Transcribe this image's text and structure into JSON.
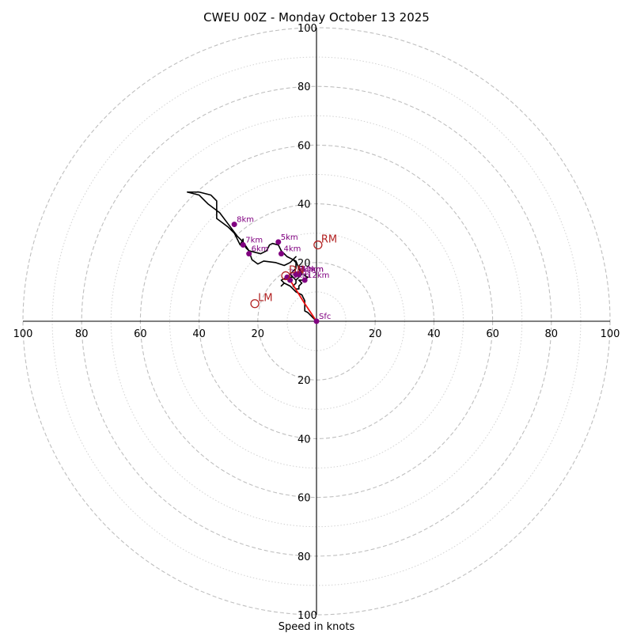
{
  "chart_data": {
    "type": "hodograph",
    "title": "CWEU 00Z - Monday October 13 2025",
    "xlabel": "Speed in knots",
    "ring_range": [
      0,
      100
    ],
    "major_rings": [
      20,
      40,
      60,
      80,
      100
    ],
    "minor_rings": [
      10,
      30,
      50,
      70,
      90
    ],
    "tick_labels": {
      "x_left": [
        "100",
        "80",
        "60",
        "40",
        "20"
      ],
      "x_right": [
        "20",
        "40",
        "60",
        "80",
        "100"
      ],
      "y_top": [
        "100",
        "80",
        "60",
        "40",
        "20"
      ],
      "y_bottom": [
        "20",
        "40",
        "60",
        "80",
        "100"
      ]
    },
    "wind_profile_uv": [
      [
        0,
        0
      ],
      [
        -1,
        1
      ],
      [
        -2,
        2
      ],
      [
        -3,
        3
      ],
      [
        -4,
        3.5
      ],
      [
        -4,
        5
      ],
      [
        -4,
        7
      ],
      [
        -5,
        9
      ],
      [
        -7,
        10
      ],
      [
        -8,
        11
      ],
      [
        -9,
        12
      ],
      [
        -11,
        13
      ],
      [
        -12,
        12
      ],
      [
        -11,
        13
      ],
      [
        -12,
        14
      ],
      [
        -10,
        15
      ],
      [
        -8,
        15
      ],
      [
        -7,
        14
      ],
      [
        -8,
        15
      ],
      [
        -9,
        16
      ],
      [
        -8,
        17
      ],
      [
        -7,
        18
      ],
      [
        -7,
        19
      ],
      [
        -7,
        20
      ],
      [
        -8,
        21
      ],
      [
        -7,
        22
      ],
      [
        -9,
        20
      ],
      [
        -11,
        19
      ],
      [
        -14,
        20
      ],
      [
        -18,
        20.5
      ],
      [
        -20,
        19.5
      ],
      [
        -22,
        21
      ],
      [
        -23,
        24
      ],
      [
        -25,
        27
      ],
      [
        -25,
        28
      ],
      [
        -26,
        26
      ],
      [
        -28,
        30
      ],
      [
        -30,
        32
      ],
      [
        -34,
        35
      ],
      [
        -34,
        38
      ],
      [
        -34,
        41
      ],
      [
        -36,
        43
      ],
      [
        -40,
        44
      ],
      [
        -44,
        44
      ],
      [
        -40,
        43
      ],
      [
        -37,
        40
      ],
      [
        -33,
        37
      ],
      [
        -30,
        33
      ],
      [
        -27,
        29
      ],
      [
        -25,
        27
      ],
      [
        -24,
        25
      ],
      [
        -23,
        24
      ],
      [
        -19,
        23
      ],
      [
        -17,
        24
      ],
      [
        -16,
        26
      ],
      [
        -15,
        26.5
      ],
      [
        -13,
        26
      ],
      [
        -12,
        24
      ],
      [
        -10,
        22
      ],
      [
        -8,
        21
      ],
      [
        -7,
        20.5
      ],
      [
        -6,
        18
      ],
      [
        -5,
        16
      ],
      [
        -6,
        15
      ],
      [
        -7,
        14
      ],
      [
        -7,
        13
      ],
      [
        -8,
        12
      ],
      [
        -7,
        11
      ],
      [
        -6,
        11
      ],
      [
        -6,
        12
      ],
      [
        -5,
        13
      ],
      [
        -6,
        14
      ],
      [
        -4,
        14
      ],
      [
        -3,
        15
      ],
      [
        -4,
        15.5
      ],
      [
        -4,
        16
      ]
    ],
    "profile_color": "#000000",
    "mean_wind_segment": [
      [
        0,
        0
      ],
      [
        -4,
        6
      ],
      [
        -9,
        14
      ]
    ],
    "mean_wind_color": "#ee1111",
    "height_markers": [
      {
        "label": "Sfc",
        "u": 0,
        "v": 0
      },
      {
        "label": "1km",
        "u": -9,
        "v": 14
      },
      {
        "label": "2km",
        "u": -10,
        "v": 15
      },
      {
        "label": "3km",
        "u": -7,
        "v": 16
      },
      {
        "label": "4km",
        "u": -12,
        "v": 23
      },
      {
        "label": "5km",
        "u": -13,
        "v": 27
      },
      {
        "label": "6km",
        "u": -23,
        "v": 23
      },
      {
        "label": "7km",
        "u": -25,
        "v": 26
      },
      {
        "label": "8km",
        "u": -28,
        "v": 33
      },
      {
        "label": "9km",
        "u": -7,
        "v": 16
      },
      {
        "label": "10km",
        "u": -6,
        "v": 16
      },
      {
        "label": "11km",
        "u": -6,
        "v": 16
      },
      {
        "label": "12km",
        "u": -4,
        "v": 14
      }
    ],
    "height_marker_color": "#800080",
    "storm_motion": [
      {
        "label": "RM",
        "u": 0.5,
        "v": 26
      },
      {
        "label": "LM",
        "u": -21,
        "v": 6
      },
      {
        "label": "DN",
        "u": -10.5,
        "v": 15.5
      }
    ],
    "storm_motion_color": "#b22222"
  }
}
